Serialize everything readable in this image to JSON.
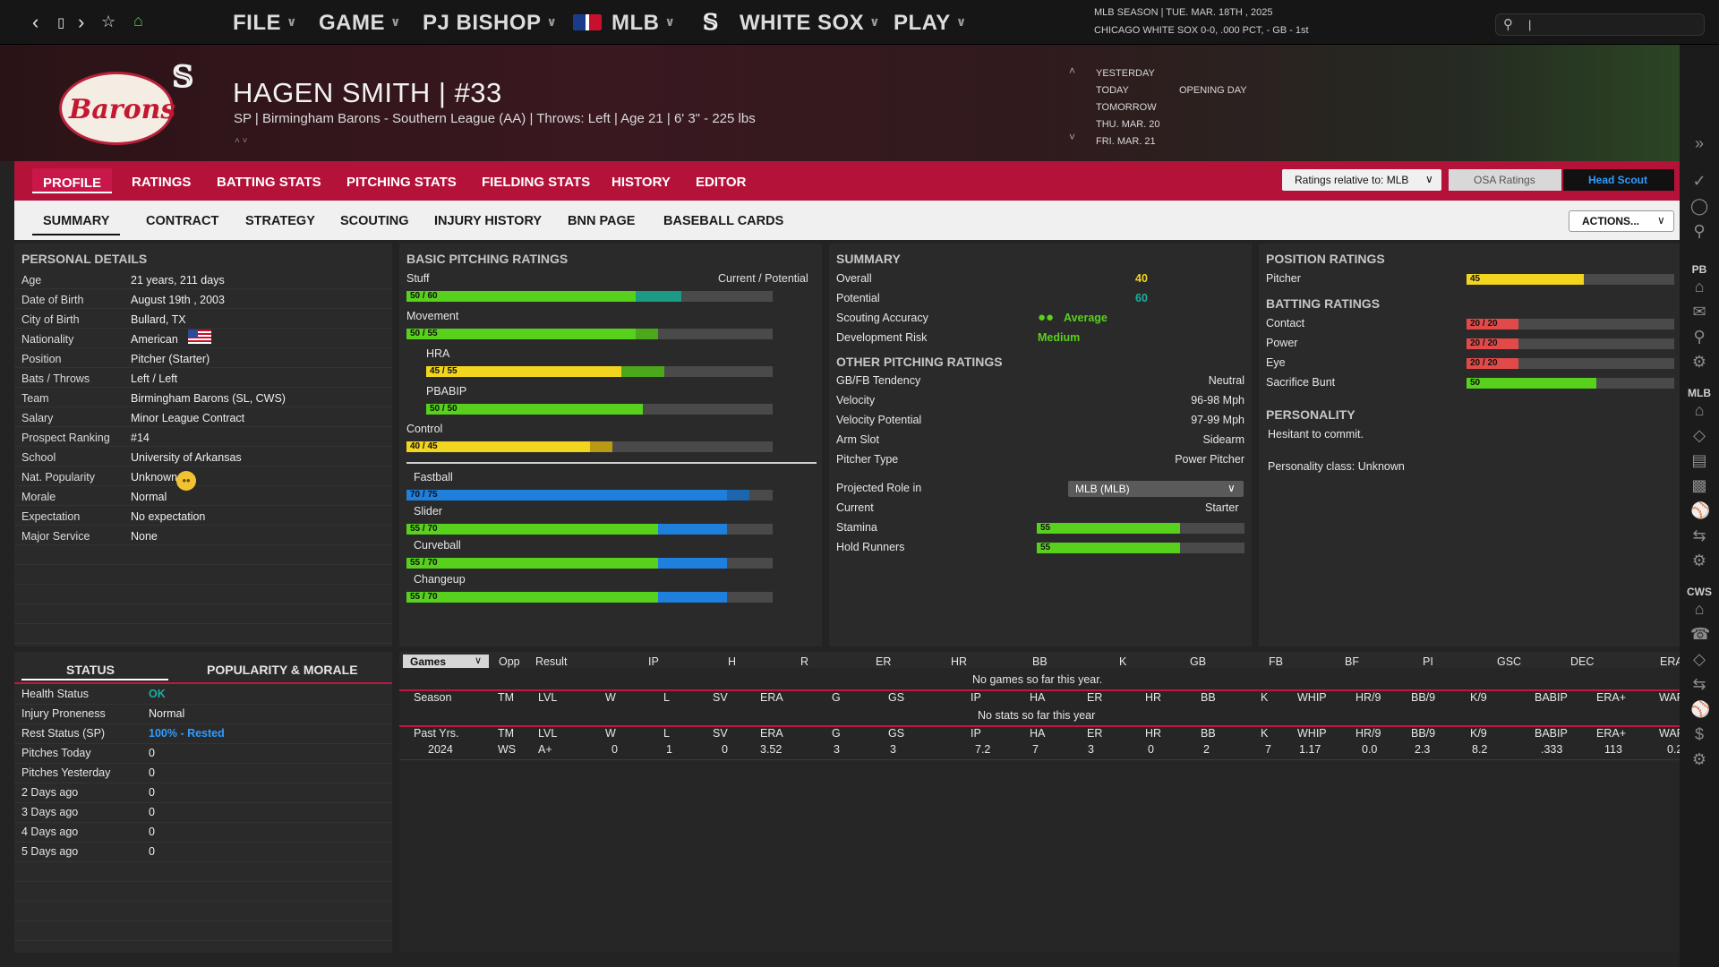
{
  "nav": {
    "menus": [
      "FILE",
      "GAME",
      "PJ BISHOP",
      "MLB",
      "WHITE SOX",
      "PLAY"
    ],
    "season_line1": "MLB SEASON  |  TUE. MAR. 18TH , 2025",
    "season_line2": "CHICAGO WHITE SOX  0-0, .000 PCT, - GB - 1st",
    "search_value": "|"
  },
  "player": {
    "name": "HAGEN SMITH  |  #33",
    "subtitle": "SP | Birmingham Barons - Southern League (AA)  |  Throws: Left  |  Age 21  |  6' 3\" - 225 lbs",
    "logo_text": "Barons"
  },
  "dates": {
    "items": [
      "YESTERDAY",
      "TODAY",
      "TOMORROW",
      "THU. MAR. 20",
      "FRI. MAR. 21"
    ],
    "today_event": "OPENING DAY"
  },
  "tabs_main": [
    "PROFILE",
    "RATINGS",
    "BATTING STATS",
    "PITCHING STATS",
    "FIELDING STATS",
    "HISTORY",
    "EDITOR"
  ],
  "tabs_sub": [
    "SUMMARY",
    "CONTRACT",
    "STRATEGY",
    "SCOUTING",
    "INJURY HISTORY",
    "BNN PAGE",
    "BASEBALL CARDS"
  ],
  "ratings_controls": {
    "relative": "Ratings relative to: MLB",
    "osa": "OSA Ratings",
    "head_scout": "Head Scout",
    "actions": "ACTIONS..."
  },
  "personal": {
    "title": "PERSONAL DETAILS",
    "rows": [
      {
        "label": "Age",
        "value": "21 years, 211 days"
      },
      {
        "label": "Date of Birth",
        "value": "August 19th , 2003"
      },
      {
        "label": "City of Birth",
        "value": "Bullard, TX"
      },
      {
        "label": "Nationality",
        "value": "American"
      },
      {
        "label": "Position",
        "value": "Pitcher (Starter)"
      },
      {
        "label": "Bats / Throws",
        "value": "Left / Left"
      },
      {
        "label": "Team",
        "value": "Birmingham Barons (SL, CWS)"
      },
      {
        "label": "Salary",
        "value": "Minor League Contract"
      },
      {
        "label": "Prospect Ranking",
        "value": "#14"
      },
      {
        "label": "School",
        "value": "University of Arkansas"
      },
      {
        "label": "Nat. Popularity",
        "value": "Unknown"
      },
      {
        "label": "Morale",
        "value": "Normal"
      },
      {
        "label": "Expectation",
        "value": "No expectation"
      },
      {
        "label": "Major Service",
        "value": "None"
      }
    ]
  },
  "pitching": {
    "title": "BASIC PITCHING RATINGS",
    "header_right": "Current / Potential",
    "bars": [
      {
        "label": "Stuff",
        "text": "50 / 60",
        "cur": 50,
        "pot": 60,
        "color": "#57d11c",
        "potcolor": "#1b9a86"
      },
      {
        "label": "Movement",
        "text": "50 / 55",
        "cur": 50,
        "pot": 55,
        "color": "#57d11c",
        "potcolor": "#4aa81a"
      },
      {
        "label": "HRA",
        "text": "45 / 55",
        "cur": 45,
        "pot": 55,
        "color": "#f1d51f",
        "potcolor": "#4aa81a"
      },
      {
        "label": "PBABIP",
        "text": "50 / 50",
        "cur": 50,
        "pot": 50,
        "color": "#57d11c",
        "potcolor": "#57d11c"
      },
      {
        "label": "Control",
        "text": "40 / 45",
        "cur": 40,
        "pot": 45,
        "color": "#f1d51f",
        "potcolor": "#b89a14"
      }
    ],
    "pitches": [
      {
        "label": "Fastball",
        "text": "70 / 75",
        "cur": 70,
        "pot": 75,
        "color": "#1e7fdc",
        "potcolor": "#1b66ad"
      },
      {
        "label": "Slider",
        "text": "55 / 70",
        "cur": 55,
        "pot": 70,
        "color": "#57d11c",
        "potcolor": "#1e7fdc"
      },
      {
        "label": "Curveball",
        "text": "55 / 70",
        "cur": 55,
        "pot": 70,
        "color": "#57d11c",
        "potcolor": "#1e7fdc"
      },
      {
        "label": "Changeup",
        "text": "55 / 70",
        "cur": 55,
        "pot": 70,
        "color": "#57d11c",
        "potcolor": "#1e7fdc"
      }
    ]
  },
  "summary": {
    "title": "SUMMARY",
    "overall_label": "Overall",
    "overall": "40",
    "potential_label": "Potential",
    "potential": "60",
    "scout_label": "Scouting Accuracy",
    "scout": "Average",
    "risk_label": "Development Risk",
    "risk": "Medium",
    "other_title": "OTHER PITCHING RATINGS",
    "other": [
      {
        "label": "GB/FB Tendency",
        "value": "Neutral"
      },
      {
        "label": "Velocity",
        "value": "96-98 Mph"
      },
      {
        "label": "Velocity Potential",
        "value": "97-99 Mph"
      },
      {
        "label": "Arm Slot",
        "value": "Sidearm"
      },
      {
        "label": "Pitcher Type",
        "value": "Power Pitcher"
      }
    ],
    "role_label": "Projected Role in",
    "role_select": "MLB (MLB)",
    "current_label": "Current",
    "current": "Starter",
    "stamina_label": "Stamina",
    "stamina": "55",
    "stamina_value": 55,
    "hold_label": "Hold Runners",
    "hold": "55",
    "hold_value": 55
  },
  "position": {
    "title": "POSITION RATINGS",
    "pitcher_label": "Pitcher",
    "pitcher": "45",
    "pitcher_value": 45,
    "batting_title": "BATTING RATINGS",
    "batting": [
      {
        "label": "Contact",
        "text": "20 / 20",
        "value": 20,
        "color": "#e24a4a"
      },
      {
        "label": "Power",
        "text": "20 / 20",
        "value": 20,
        "color": "#e24a4a"
      },
      {
        "label": "Eye",
        "text": "20 / 20",
        "value": 20,
        "color": "#e24a4a"
      },
      {
        "label": "Sacrifice Bunt",
        "text": "50",
        "value": 50,
        "color": "#57d11c"
      }
    ],
    "personality_title": "PERSONALITY",
    "personality": "Hesitant to commit.",
    "personality_class": "Personality class: Unknown"
  },
  "status": {
    "tab_status": "STATUS",
    "tab_popularity": "POPULARITY & MORALE",
    "rows": [
      {
        "label": "Health Status",
        "value": "OK"
      },
      {
        "label": "Injury Proneness",
        "value": "Normal"
      },
      {
        "label": "Rest Status (SP)",
        "value": "100% - Rested"
      },
      {
        "label": "Pitches Today",
        "value": "0"
      },
      {
        "label": "Pitches Yesterday",
        "value": "0"
      },
      {
        "label": "2 Days ago",
        "value": "0"
      },
      {
        "label": "3 Days ago",
        "value": "0"
      },
      {
        "label": "4 Days ago",
        "value": "0"
      },
      {
        "label": "5 Days ago",
        "value": "0"
      }
    ]
  },
  "games_table": {
    "select": "Games",
    "headers": [
      "Opp",
      "Result",
      "IP",
      "H",
      "R",
      "ER",
      "HR",
      "BB",
      "K",
      "GB",
      "FB",
      "BF",
      "PI",
      "GSC",
      "DEC",
      "ERA"
    ],
    "empty": "No games so far this year."
  },
  "season_table": {
    "headers": [
      "Season",
      "TM",
      "LVL",
      "W",
      "L",
      "SV",
      "ERA",
      "G",
      "GS",
      "IP",
      "HA",
      "ER",
      "HR",
      "BB",
      "K",
      "WHIP",
      "HR/9",
      "BB/9",
      "K/9",
      "BABIP",
      "ERA+",
      "WAR"
    ],
    "empty": "No stats so far this year"
  },
  "past_table": {
    "headers": [
      "Past Yrs.",
      "TM",
      "LVL",
      "W",
      "L",
      "SV",
      "ERA",
      "G",
      "GS",
      "IP",
      "HA",
      "ER",
      "HR",
      "BB",
      "K",
      "WHIP",
      "HR/9",
      "BB/9",
      "K/9",
      "BABIP",
      "ERA+",
      "WAR"
    ],
    "row": [
      "2024",
      "WS",
      "A+",
      "0",
      "1",
      "0",
      "3.52",
      "3",
      "3",
      "7.2",
      "7",
      "3",
      "0",
      "2",
      "7",
      "1.17",
      "0.0",
      "2.3",
      "8.2",
      ".333",
      "113",
      "0.2"
    ]
  },
  "sidebar": {
    "labels": [
      "PB",
      "MLB",
      "CWS"
    ]
  },
  "colors": {
    "accent": "#b5123a",
    "green": "#57d11c",
    "yellow": "#f1d51f",
    "blue": "#1e7fdc",
    "teal": "#19b0a0"
  }
}
